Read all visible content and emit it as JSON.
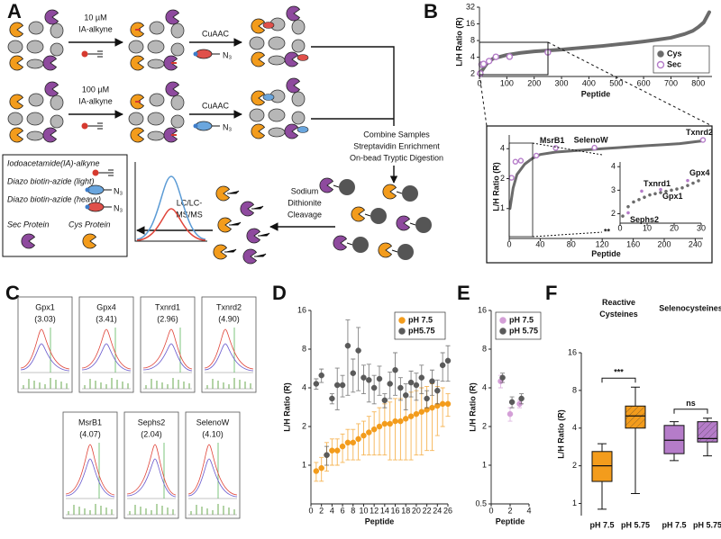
{
  "panel_a": {
    "label": "A",
    "row1": {
      "dose": "10 µM",
      "reagent": "IA-alkyne",
      "reaction": "CuAAC"
    },
    "row2": {
      "dose": "100 µM",
      "reagent": "IA-alkyne",
      "reaction": "CuAAC"
    },
    "azide": "N₃",
    "combine": [
      "Combine Samples",
      "Streptavidin Enrichment",
      "On-bead Tryptic Digestion"
    ],
    "cleavage": [
      "Sodium",
      "Dithionite",
      "Cleavage"
    ],
    "analysis": [
      "LC/LC-",
      "MS/MS"
    ],
    "legend": [
      "Iodoacetamide(IA)-alkyne",
      "Diazo biotin-azide (light)",
      "Diazo biotin-azide (heavy)",
      "Sec Protein",
      "Cys Protein"
    ]
  },
  "panel_b": {
    "label": "B",
    "main": {
      "type": "scatter",
      "xlabel": "Peptide",
      "ylabel": "L/H Ratio (R)",
      "xlim": [
        0,
        850
      ],
      "ylim": [
        1.8,
        32
      ],
      "xticks": [
        0,
        100,
        200,
        300,
        400,
        500,
        600,
        700,
        800
      ],
      "yticks": [
        2,
        4,
        8,
        16,
        32
      ],
      "yscale": "log",
      "legend": "bottom-right",
      "series": [
        {
          "name": "Cys",
          "color": "#6b6b6b",
          "line": true,
          "x": [
            1,
            25,
            50,
            100,
            150,
            200,
            250,
            300,
            350,
            400,
            450,
            500,
            550,
            600,
            650,
            700,
            750,
            780,
            800,
            820,
            840
          ],
          "values": [
            2,
            3,
            3.8,
            4.4,
            4.8,
            5.1,
            5.3,
            5.5,
            5.8,
            6.1,
            6.4,
            6.8,
            7.2,
            7.7,
            8.3,
            9,
            10.5,
            12,
            14,
            17,
            26
          ]
        },
        {
          "name": "Sec",
          "color": "#b57cc9",
          "open": true,
          "x": [
            3,
            8,
            15,
            35,
            60,
            110,
            250
          ],
          "values": [
            2.04,
            2.96,
            3.03,
            3.41,
            4.07,
            4.1,
            4.9
          ]
        }
      ]
    },
    "inset": {
      "type": "scatter",
      "xlabel": "Peptide",
      "ylabel": "L/H Ratio (R)",
      "xlim": [
        0,
        250
      ],
      "ylim": [
        0.5,
        5.5
      ],
      "xticks": [
        0,
        40,
        80,
        120,
        160,
        200,
        240
      ],
      "yticks": [
        1,
        2,
        4
      ],
      "yscale": "log",
      "series": [
        {
          "name": "Cys",
          "color": "#6b6b6b",
          "line": true,
          "x": [
            1,
            5,
            10,
            20,
            30,
            40,
            60,
            80,
            100,
            120,
            140,
            160,
            180,
            200,
            220,
            240,
            250
          ],
          "values": [
            1,
            1.6,
            2.2,
            2.8,
            3.2,
            3.5,
            3.7,
            3.8,
            3.9,
            4,
            4.1,
            4.2,
            4.3,
            4.4,
            4.5,
            4.7,
            4.8
          ]
        },
        {
          "name": "Sec",
          "color": "#b57cc9",
          "open": true,
          "x": [
            3,
            8,
            15,
            35,
            60,
            110,
            250
          ],
          "values": [
            2.04,
            2.96,
            3.03,
            3.41,
            4.07,
            4.1,
            4.9
          ],
          "labels": [
            null,
            null,
            null,
            null,
            "MsrB1",
            "SelenoW",
            "Txnrd2"
          ]
        }
      ]
    },
    "subinset": {
      "type": "scatter",
      "xlim": [
        0,
        30
      ],
      "ylim": [
        1.6,
        4.2
      ],
      "xticks": [
        0,
        10,
        20,
        30
      ],
      "yticks": [
        2,
        3,
        4
      ],
      "note": "**",
      "series": [
        {
          "name": "Cys",
          "color": "#6b6b6b",
          "x": [
            1,
            3,
            5,
            7,
            9,
            11,
            13,
            15,
            17,
            19,
            21,
            23,
            25,
            27,
            29
          ],
          "values": [
            1.9,
            2.3,
            2.5,
            2.6,
            2.7,
            2.8,
            2.85,
            2.9,
            2.95,
            3,
            3.05,
            3.1,
            3.2,
            3.3,
            3.4
          ]
        },
        {
          "name": "Sec",
          "color": "#b57cc9",
          "x": [
            3,
            8,
            15,
            25
          ],
          "values": [
            2.04,
            2.96,
            3.03,
            3.41
          ],
          "labels": [
            "Sephs2",
            "Txnrd1",
            "Gpx1",
            "Gpx4"
          ]
        }
      ]
    }
  },
  "panel_c": {
    "label": "C",
    "traces": [
      {
        "name": "Gpx1",
        "ratio": "(3.03)"
      },
      {
        "name": "Gpx4",
        "ratio": "(3.41)"
      },
      {
        "name": "Txnrd1",
        "ratio": "(2.96)"
      },
      {
        "name": "Txnrd2",
        "ratio": "(4.90)"
      },
      {
        "name": "MsrB1",
        "ratio": "(4.07)"
      },
      {
        "name": "Sephs2",
        "ratio": "(2.04)"
      },
      {
        "name": "SelenoW",
        "ratio": "(4.10)"
      }
    ]
  },
  "panel_d": {
    "label": "D",
    "chart": {
      "type": "scatter",
      "xlabel": "Peptide",
      "ylabel": "L/H Ratio (R)",
      "xlim": [
        0,
        26
      ],
      "ylim": [
        0.5,
        16
      ],
      "xticks": [
        0,
        2,
        4,
        6,
        8,
        10,
        12,
        14,
        16,
        18,
        20,
        22,
        24,
        26
      ],
      "yticks": [
        1,
        2,
        4,
        8,
        16
      ],
      "yscale": "log",
      "legend": "top-right",
      "series": [
        {
          "name": "pH 7.5",
          "color": "#f39c1c",
          "x": [
            1,
            2,
            3,
            4,
            5,
            6,
            7,
            8,
            9,
            10,
            11,
            12,
            13,
            14,
            15,
            16,
            17,
            18,
            19,
            20,
            21,
            22,
            23,
            24,
            25,
            26
          ],
          "values": [
            0.9,
            0.95,
            1.2,
            1.3,
            1.3,
            1.4,
            1.5,
            1.5,
            1.6,
            1.7,
            1.8,
            1.9,
            2,
            2.1,
            2.1,
            2.2,
            2.2,
            2.3,
            2.4,
            2.5,
            2.6,
            2.7,
            2.8,
            2.9,
            3,
            3
          ],
          "errors": [
            0.15,
            0.2,
            0.3,
            0.3,
            0.3,
            0.35,
            0.4,
            0.4,
            0.5,
            0.5,
            0.6,
            0.7,
            0.8,
            0.9,
            1,
            1.1,
            1.1,
            1.2,
            1.3,
            1.3,
            1.4,
            1.4,
            1.5,
            1.2,
            1,
            0.6
          ]
        },
        {
          "name": "pH5.75",
          "color": "#5a5a5a",
          "x": [
            1,
            2,
            3,
            4,
            5,
            6,
            7,
            8,
            9,
            10,
            11,
            12,
            13,
            14,
            15,
            16,
            17,
            18,
            19,
            20,
            21,
            22,
            23,
            24,
            25,
            26
          ],
          "values": [
            4.3,
            5,
            1.2,
            3.3,
            4.2,
            4.2,
            8.5,
            5.2,
            7.8,
            4.8,
            4.6,
            4,
            4.7,
            3.2,
            4.3,
            5.5,
            4,
            3.5,
            4.4,
            4.2,
            4.8,
            3.3,
            4.5,
            3.8,
            6,
            6.5
          ],
          "errors": [
            0.4,
            0.6,
            0.2,
            0.3,
            1.5,
            0.8,
            5,
            1.5,
            4,
            1.2,
            1.5,
            1,
            1.2,
            0.4,
            1,
            2,
            0.8,
            0.8,
            1,
            1,
            1.2,
            0.5,
            1,
            0.8,
            1.5,
            2
          ]
        }
      ]
    }
  },
  "panel_e": {
    "label": "E",
    "chart": {
      "type": "scatter",
      "xlabel": "Peptide",
      "ylabel": "L/H Ratio (R)",
      "xlim": [
        0,
        4
      ],
      "ylim": [
        0.5,
        16
      ],
      "xticks": [
        0,
        2,
        4
      ],
      "yticks": [
        0.5,
        1,
        2,
        4,
        8,
        16
      ],
      "yscale": "log",
      "legend": "top-left",
      "series": [
        {
          "name": "pH 7.5",
          "color": "#d49fd7",
          "x": [
            1,
            2,
            3
          ],
          "values": [
            4.5,
            2.5,
            3
          ],
          "errors": [
            0.5,
            0.3,
            0.2
          ]
        },
        {
          "name": "pH 5.75",
          "color": "#5a5a5a",
          "x": [
            1.2,
            2.2,
            3.2
          ],
          "values": [
            4.8,
            3.1,
            3.3
          ],
          "errors": [
            0.4,
            0.3,
            0.3
          ]
        }
      ]
    }
  },
  "panel_f": {
    "label": "F",
    "chart": {
      "type": "box",
      "ylabel": "L/H Ratio (R)",
      "ylim": [
        0.8,
        16
      ],
      "yticks": [
        1,
        2,
        4,
        8,
        16
      ],
      "yscale": "log",
      "categories": [
        "pH 7.5",
        "pH 5.75",
        "pH 7.5",
        "pH 5.75"
      ],
      "groups": [
        {
          "title": [
            "Reactive",
            "Cysteines"
          ],
          "significance": "***"
        },
        {
          "title": [
            "Selenocysteines"
          ],
          "significance": "ns"
        }
      ],
      "boxes": [
        {
          "min": 0.9,
          "q1": 1.5,
          "median": 2,
          "q3": 2.6,
          "max": 3,
          "color": "#f39c1c",
          "hatch": false
        },
        {
          "min": 1.2,
          "q1": 4,
          "median": 5,
          "q3": 6,
          "max": 8.5,
          "color": "#f39c1c",
          "hatch": true
        },
        {
          "min": 2.2,
          "q1": 2.5,
          "median": 3.2,
          "q3": 4.2,
          "max": 4.5,
          "color": "#b57cc9",
          "hatch": false
        },
        {
          "min": 2.4,
          "q1": 3.1,
          "median": 3.3,
          "q3": 4.5,
          "max": 4.8,
          "color": "#b57cc9",
          "hatch": true
        }
      ]
    }
  }
}
